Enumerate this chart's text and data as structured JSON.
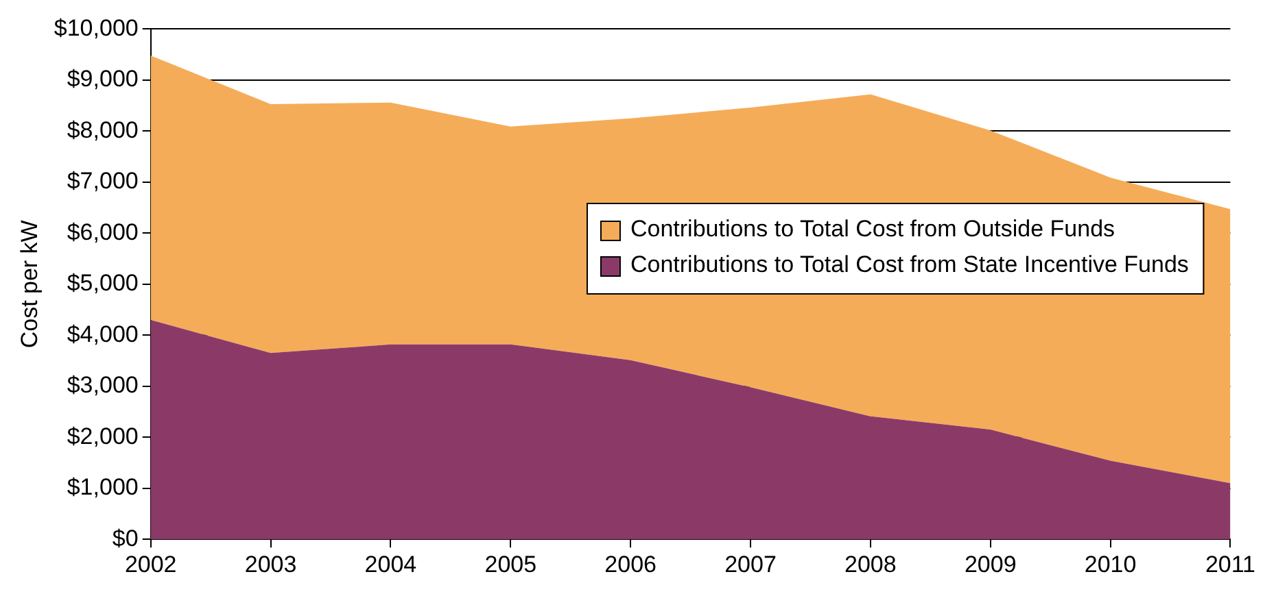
{
  "chart_data": {
    "type": "area",
    "stacked": true,
    "ylabel": "Cost per kW",
    "x": [
      2002,
      2003,
      2004,
      2005,
      2006,
      2007,
      2008,
      2009,
      2010,
      2011
    ],
    "series": [
      {
        "name": "Contributions to Total Cost from State Incentive Funds",
        "color": "#8b3a68",
        "values": [
          4300,
          3650,
          3820,
          3820,
          3510,
          2980,
          2410,
          2150,
          1540,
          1100
        ]
      },
      {
        "name": "Contributions to Total Cost from Outside Funds",
        "color": "#f5ac58",
        "values": [
          5180,
          4880,
          4740,
          4270,
          4740,
          5480,
          6310,
          5860,
          5550,
          5370
        ]
      }
    ],
    "xlim": [
      2002,
      2011
    ],
    "xticks": [
      2002,
      2003,
      2004,
      2005,
      2006,
      2007,
      2008,
      2009,
      2010,
      2011
    ],
    "ylim": [
      0,
      10000
    ],
    "yticks": [
      {
        "value": 0,
        "label": "$0"
      },
      {
        "value": 1000,
        "label": "$1,000"
      },
      {
        "value": 2000,
        "label": "$2,000"
      },
      {
        "value": 3000,
        "label": "$3,000"
      },
      {
        "value": 4000,
        "label": "$4,000"
      },
      {
        "value": 5000,
        "label": "$5,000"
      },
      {
        "value": 6000,
        "label": "$6,000"
      },
      {
        "value": 7000,
        "label": "$7,000"
      },
      {
        "value": 8000,
        "label": "$8,000"
      },
      {
        "value": 9000,
        "label": "$9,000"
      },
      {
        "value": 10000,
        "label": "$10,000"
      }
    ],
    "grid": "y",
    "legend": "right"
  }
}
